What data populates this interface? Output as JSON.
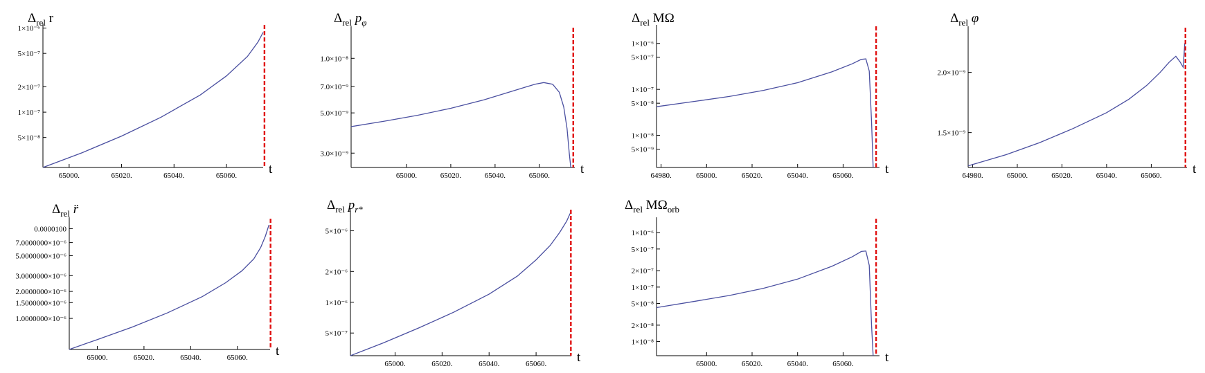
{
  "chart_data": [
    {
      "type": "line",
      "title_base": "Δ",
      "title_sub": "rel",
      "title_rest": " r",
      "title_rest_style": "upright",
      "xlabel": "t",
      "x_ticks": [
        "65000.",
        "65020.",
        "65040.",
        "65060."
      ],
      "x_tick_values": [
        65000,
        65020,
        65040,
        65060
      ],
      "y_ticks": [
        "5×10⁻⁸",
        "1×10⁻⁷",
        "2×10⁻⁷",
        "5×10⁻⁷",
        "1×10⁻⁶"
      ],
      "y_tick_values": [
        5e-08,
        1e-07,
        2e-07,
        5e-07,
        1e-06
      ],
      "y_scale": "log",
      "xlim": [
        64990,
        65074
      ],
      "ylim": [
        2.2e-08,
        1.05e-06
      ],
      "series": [
        {
          "color": "#4a4fa0",
          "x": [
            64990,
            65005,
            65020,
            65035,
            65050,
            65060,
            65068,
            65072,
            65074
          ],
          "y": [
            2.2e-08,
            3.3e-08,
            5.2e-08,
            8.7e-08,
            1.6e-07,
            2.7e-07,
            4.6e-07,
            6.8e-07,
            8.9e-07
          ]
        }
      ],
      "marker_x": 65074.5,
      "marker_color": "#e01010"
    },
    {
      "type": "line",
      "title_base": "Δ",
      "title_sub": "rel",
      "title_rest": " p",
      "title_rest_style": "italic",
      "title_rest_sub": "φ",
      "xlabel": "t",
      "x_ticks": [
        "65000.",
        "65020.",
        "65040.",
        "65060."
      ],
      "x_tick_values": [
        65000,
        65020,
        65040,
        65060
      ],
      "y_ticks": [
        "3.0×10⁻⁹",
        "5.0×10⁻⁹",
        "7.0×10⁻⁹",
        "1.0×10⁻⁸"
      ],
      "y_tick_values": [
        3e-09,
        5e-09,
        7e-09,
        1e-08
      ],
      "y_scale": "log",
      "xlim": [
        64975,
        65076
      ],
      "ylim": [
        2.5e-09,
        1.45e-08
      ],
      "series": [
        {
          "color": "#4a4fa0",
          "x": [
            64975,
            64990,
            65005,
            65020,
            65035,
            65048,
            65058,
            65062,
            65066,
            65069,
            65071,
            65072.5,
            65073.5,
            65074.2
          ],
          "y": [
            4.2e-09,
            4.5e-09,
            4.85e-09,
            5.3e-09,
            5.9e-09,
            6.6e-09,
            7.2e-09,
            7.35e-09,
            7.2e-09,
            6.5e-09,
            5.4e-09,
            4.1e-09,
            3e-09,
            2.5e-09
          ]
        }
      ],
      "marker_x": 65075.3,
      "marker_color": "#e01010"
    },
    {
      "type": "line",
      "title_base": "Δ",
      "title_sub": "rel",
      "title_rest": " MΩ",
      "title_rest_style": "upright",
      "xlabel": "t",
      "x_ticks": [
        "64980.",
        "65000.",
        "65020.",
        "65040.",
        "65060."
      ],
      "x_tick_values": [
        64980,
        65000,
        65020,
        65040,
        65060
      ],
      "y_ticks": [
        "5×10⁻⁹",
        "1×10⁻⁸",
        "5×10⁻⁸",
        "1×10⁻⁷",
        "5×10⁻⁷",
        "1×10⁻⁶"
      ],
      "y_tick_values": [
        5e-09,
        1e-08,
        5e-08,
        1e-07,
        5e-07,
        1e-06
      ],
      "y_scale": "log",
      "xlim": [
        64978,
        65076
      ],
      "ylim": [
        2e-09,
        2.2e-06
      ],
      "series": [
        {
          "color": "#4a4fa0",
          "x": [
            64978,
            64995,
            65010,
            65025,
            65040,
            65055,
            65064,
            65068,
            65070,
            65071.5,
            65072.5,
            65073.2
          ],
          "y": [
            4.2e-08,
            5.5e-08,
            7e-08,
            9.5e-08,
            1.4e-07,
            2.4e-07,
            3.6e-07,
            4.5e-07,
            4.6e-07,
            2.5e-07,
            2e-08,
            2e-09
          ]
        }
      ],
      "marker_x": 65074.5,
      "marker_color": "#e01010"
    },
    {
      "type": "line",
      "title_base": "Δ",
      "title_sub": "rel",
      "title_rest": " φ",
      "title_rest_style": "italic",
      "xlabel": "t",
      "x_ticks": [
        "64980.",
        "65000.",
        "65020.",
        "65040.",
        "65060."
      ],
      "x_tick_values": [
        64980,
        65000,
        65020,
        65040,
        65060
      ],
      "y_ticks": [
        "1.5×10⁻⁹",
        "2.0×10⁻⁹"
      ],
      "y_tick_values": [
        1.5e-09,
        2e-09
      ],
      "y_scale": "log",
      "xlim": [
        64978,
        65076
      ],
      "ylim": [
        1.27e-09,
        2.46e-09
      ],
      "series": [
        {
          "color": "#4a4fa0",
          "x": [
            64978,
            64995,
            65010,
            65025,
            65040,
            65050,
            65058,
            65064,
            65068,
            65071,
            65073,
            65074.3,
            65075
          ],
          "y": [
            1.28e-09,
            1.35e-09,
            1.43e-09,
            1.53e-09,
            1.65e-09,
            1.76e-09,
            1.88e-09,
            2e-09,
            2.1e-09,
            2.16e-09,
            2.1e-09,
            2.05e-09,
            2.3e-09
          ]
        }
      ],
      "marker_x": 65075.3,
      "marker_color": "#e01010"
    },
    {
      "type": "line",
      "title_base": "Δ",
      "title_sub": "rel",
      "title_rest": " r̈",
      "title_rest_style": "italic",
      "xlabel": "t",
      "x_ticks": [
        "65000.",
        "65020.",
        "65040.",
        "65060."
      ],
      "x_tick_values": [
        65000,
        65020,
        65040,
        65060
      ],
      "y_ticks": [
        "1.0000000×10⁻⁶",
        "1.5000000×10⁻⁶",
        "2.0000000×10⁻⁶",
        "3.0000000×10⁻⁶",
        "5.0000000×10⁻⁶",
        "7.0000000×10⁻⁶",
        "0.0000100"
      ],
      "y_tick_values": [
        1e-06,
        1.5e-06,
        2e-06,
        3e-06,
        5e-06,
        7e-06,
        1e-05
      ],
      "y_scale": "log",
      "xlim": [
        64988,
        65074
      ],
      "ylim": [
        4.5e-07,
        1.25e-05
      ],
      "series": [
        {
          "color": "#4a4fa0",
          "x": [
            64988,
            65000,
            65015,
            65030,
            65045,
            65055,
            65062,
            65067,
            65070,
            65072,
            65073.5
          ],
          "y": [
            4.5e-07,
            5.8e-07,
            8e-07,
            1.15e-06,
            1.75e-06,
            2.5e-06,
            3.4e-06,
            4.6e-06,
            6.2e-06,
            8.3e-06,
            1.1e-05
          ]
        }
      ],
      "marker_x": 65074.2,
      "marker_color": "#e01010"
    },
    {
      "type": "line",
      "title_base": "Δ",
      "title_sub": "rel",
      "title_rest": " p",
      "title_rest_style": "italic",
      "title_rest_sub": "r*",
      "xlabel": "t",
      "x_ticks": [
        "65000.",
        "65020.",
        "65040.",
        "65060."
      ],
      "x_tick_values": [
        65000,
        65020,
        65040,
        65060
      ],
      "y_ticks": [
        "5×10⁻⁷",
        "1×10⁻⁶",
        "2×10⁻⁶",
        "5×10⁻⁶"
      ],
      "y_tick_values": [
        5e-07,
        1e-06,
        2e-06,
        5e-06
      ],
      "y_scale": "log",
      "xlim": [
        64981,
        65075
      ],
      "ylim": [
        3e-07,
        7.8e-06
      ],
      "series": [
        {
          "color": "#4a4fa0",
          "x": [
            64981,
            64995,
            65010,
            65025,
            65040,
            65052,
            65060,
            65066,
            65070,
            65073,
            65074.5
          ],
          "y": [
            3e-07,
            4e-07,
            5.6e-07,
            8e-07,
            1.2e-06,
            1.8e-06,
            2.6e-06,
            3.6e-06,
            4.8e-06,
            6.2e-06,
            7.4e-06
          ]
        }
      ],
      "marker_x": 65074.8,
      "marker_color": "#e01010"
    },
    {
      "type": "line",
      "title_base": "Δ",
      "title_sub": "rel",
      "title_rest": " MΩ",
      "title_rest_style": "upright",
      "title_rest_sub": "orb",
      "xlabel": "t",
      "x_ticks": [
        "65000.",
        "65020.",
        "65040.",
        "65060."
      ],
      "x_tick_values": [
        65000,
        65020,
        65040,
        65060
      ],
      "y_ticks": [
        "1×10⁻⁸",
        "2×10⁻⁸",
        "5×10⁻⁸",
        "1×10⁻⁷",
        "2×10⁻⁷",
        "5×10⁻⁷",
        "1×10⁻⁶"
      ],
      "y_tick_values": [
        1e-08,
        2e-08,
        5e-08,
        1e-07,
        2e-07,
        5e-07,
        1e-06
      ],
      "y_scale": "log",
      "xlim": [
        64978,
        65076
      ],
      "ylim": [
        5.5e-09,
        1.7e-06
      ],
      "series": [
        {
          "color": "#4a4fa0",
          "x": [
            64978,
            64995,
            65010,
            65025,
            65040,
            65055,
            65064,
            65068,
            65070,
            65071.5,
            65072.5,
            65073.2
          ],
          "y": [
            4.2e-08,
            5.5e-08,
            7e-08,
            9.5e-08,
            1.4e-07,
            2.4e-07,
            3.6e-07,
            4.5e-07,
            4.6e-07,
            2.5e-07,
            2e-08,
            5.5e-09
          ]
        }
      ],
      "marker_x": 65074.5,
      "marker_color": "#e01010"
    }
  ]
}
